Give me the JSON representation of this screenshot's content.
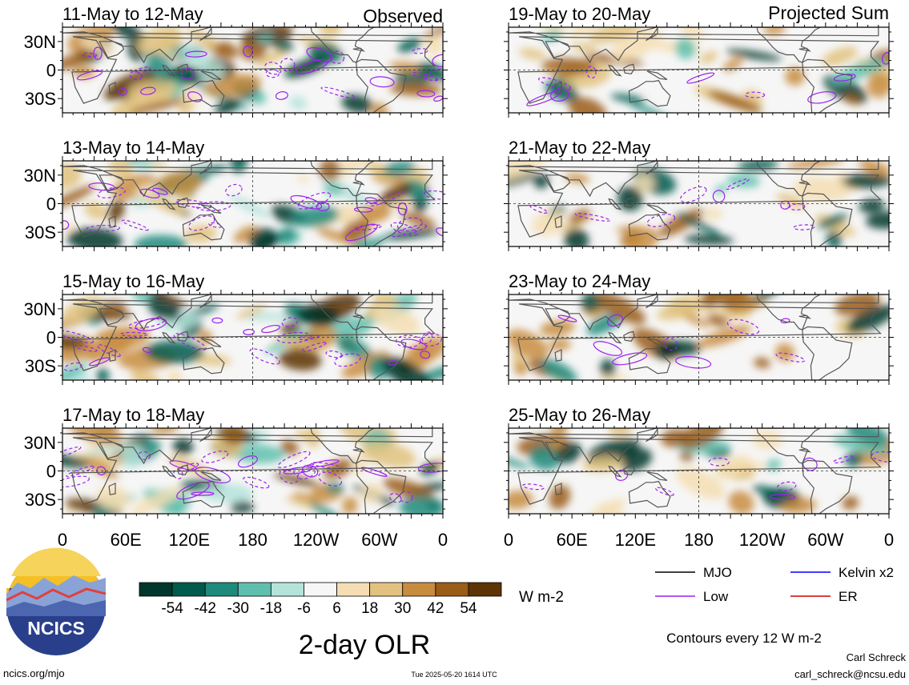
{
  "columns": {
    "left_label": "Observed",
    "right_label": "Projected Sum"
  },
  "panels": {
    "left": [
      "11-May to 12-May",
      "13-May to 14-May",
      "15-May to 16-May",
      "17-May to 18-May"
    ],
    "right": [
      "19-May to 20-May",
      "21-May to 22-May",
      "23-May to 24-May",
      "25-May to 26-May"
    ]
  },
  "lat_ticks": [
    "30N",
    "0",
    "30S"
  ],
  "lon_ticks": [
    "0",
    "60E",
    "120E",
    "180",
    "120W",
    "60W",
    "0"
  ],
  "colorbar": {
    "labels": [
      "-54",
      "-42",
      "-30",
      "-18",
      "-6",
      "6",
      "18",
      "30",
      "42",
      "54"
    ],
    "colors": [
      "#00362c",
      "#005a4d",
      "#1d8a7c",
      "#5fbfae",
      "#b4e3da",
      "#f6f6f6",
      "#f5deb3",
      "#e2c27e",
      "#c88c3e",
      "#9a5c16",
      "#5c3407"
    ],
    "units": "W m-2"
  },
  "legend": {
    "items": [
      {
        "label": "MJO",
        "color": "#000000"
      },
      {
        "label": "Kelvin x2",
        "color": "#0000ff"
      },
      {
        "label": "Low",
        "color": "#a020f0"
      },
      {
        "label": "ER",
        "color": "#cc0000"
      }
    ],
    "note": "Contours every 12 W m-2"
  },
  "title": "2-day OLR",
  "logo_text": "NCICS",
  "footer": {
    "url": "ncics.org/mjo",
    "timestamp": "Tue 2025-05-20 1614 UTC",
    "author": "Carl Schreck",
    "email": "carl_schreck@ncsu.edu"
  }
}
